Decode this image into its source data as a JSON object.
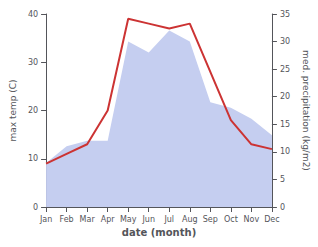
{
  "chart_data": {
    "type": "line",
    "categories": [
      "Jan",
      "Feb",
      "Mar",
      "Apr",
      "May",
      "Jun",
      "Jul",
      "Aug",
      "Sep",
      "Oct",
      "Nov",
      "Dec"
    ],
    "xlabel": "date (month)",
    "ylabel": "max temp (C)",
    "y2label": "med. precipitation (kg/m2)",
    "series": [
      {
        "type": "area",
        "color": "#c5cef0",
        "axis": "y2",
        "values": [
          8,
          11,
          12,
          12,
          30,
          28,
          32,
          30,
          19,
          18,
          16,
          13
        ]
      },
      {
        "type": "line",
        "color": "#cc3333",
        "values": [
          9,
          11,
          13,
          20,
          39,
          38,
          37,
          38,
          28,
          18,
          13,
          12
        ]
      }
    ],
    "ylim": [
      0,
      40
    ],
    "yticks": [
      0,
      10,
      20,
      30,
      40
    ],
    "y2lim": [
      0,
      35
    ],
    "y2ticks": [
      0,
      5,
      10,
      15,
      20,
      25,
      30,
      35
    ],
    "grid": false
  }
}
